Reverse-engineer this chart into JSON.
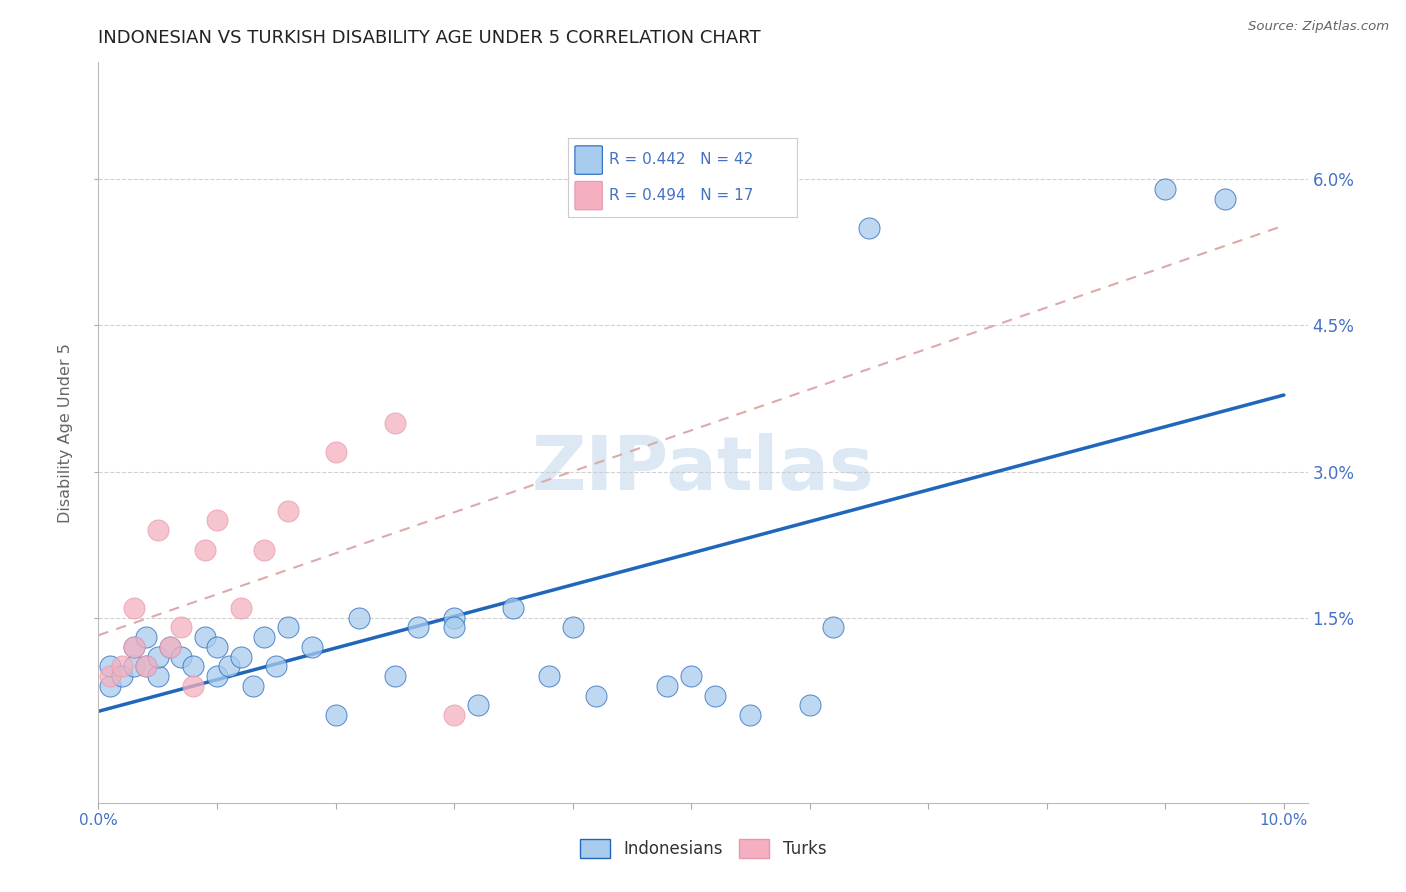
{
  "title": "INDONESIAN VS TURKISH DISABILITY AGE UNDER 5 CORRELATION CHART",
  "source": "Source: ZipAtlas.com",
  "ylabel": "Disability Age Under 5",
  "r_indonesian": 0.442,
  "n_indonesian": 42,
  "r_turkish": 0.494,
  "n_turkish": 17,
  "indonesian_color": "#A8CCEE",
  "turkish_color": "#F4B0C0",
  "trend_indonesian_color": "#2266BB",
  "trend_turkish_color": "#E898A8",
  "trend_turkish_line_color": "#DDAAAA",
  "legend_indonesian": "Indonesians",
  "legend_turkish": "Turks",
  "xlim": [
    0.0,
    0.102
  ],
  "ylim": [
    -0.004,
    0.072
  ],
  "title_color": "#222222",
  "axis_tick_color": "#4472C4",
  "watermark_color": "#DCE8F4",
  "watermark": "ZIPatlas",
  "background_color": "#FFFFFF",
  "grid_color": "#CCCCCC",
  "indonesian_x": [
    0.001,
    0.001,
    0.002,
    0.003,
    0.003,
    0.004,
    0.004,
    0.005,
    0.005,
    0.006,
    0.007,
    0.008,
    0.009,
    0.01,
    0.01,
    0.011,
    0.012,
    0.013,
    0.014,
    0.015,
    0.016,
    0.018,
    0.02,
    0.022,
    0.025,
    0.027,
    0.03,
    0.03,
    0.032,
    0.035,
    0.038,
    0.04,
    0.042,
    0.048,
    0.05,
    0.052,
    0.055,
    0.06,
    0.062,
    0.065,
    0.09,
    0.095
  ],
  "indonesian_y": [
    0.008,
    0.01,
    0.009,
    0.01,
    0.012,
    0.01,
    0.013,
    0.009,
    0.011,
    0.012,
    0.011,
    0.01,
    0.013,
    0.009,
    0.012,
    0.01,
    0.011,
    0.008,
    0.013,
    0.01,
    0.014,
    0.012,
    0.005,
    0.015,
    0.009,
    0.014,
    0.015,
    0.014,
    0.006,
    0.016,
    0.009,
    0.014,
    0.007,
    0.008,
    0.009,
    0.007,
    0.005,
    0.006,
    0.014,
    0.055,
    0.059,
    0.058
  ],
  "turkish_x": [
    0.001,
    0.002,
    0.003,
    0.003,
    0.004,
    0.005,
    0.006,
    0.007,
    0.008,
    0.009,
    0.01,
    0.012,
    0.014,
    0.016,
    0.02,
    0.025,
    0.03
  ],
  "turkish_y": [
    0.009,
    0.01,
    0.012,
    0.016,
    0.01,
    0.024,
    0.012,
    0.014,
    0.008,
    0.022,
    0.025,
    0.016,
    0.022,
    0.026,
    0.032,
    0.035,
    0.005
  ],
  "ytick_positions": [
    0.015,
    0.03,
    0.045,
    0.06
  ],
  "ytick_labels": [
    "1.5%",
    "3.0%",
    "4.5%",
    "6.0%"
  ]
}
